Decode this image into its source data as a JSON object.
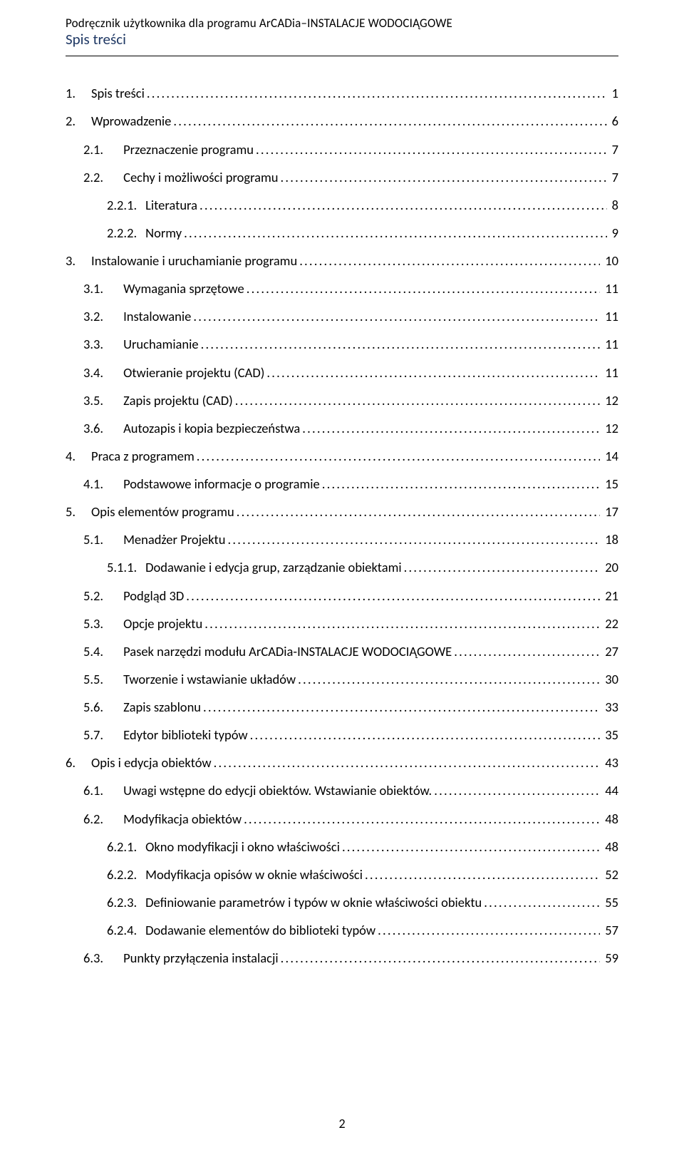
{
  "header": {
    "line1": "Podręcznik użytkownika dla programu ArCADia–INSTALACJE WODOCIĄGOWE",
    "line2": "Spis treści"
  },
  "footer": {
    "page_number": "2"
  },
  "toc": [
    {
      "level": 1,
      "num": "1.",
      "title": "Spis treści",
      "page": "1"
    },
    {
      "level": 1,
      "num": "2.",
      "title": "Wprowadzenie",
      "page": "6"
    },
    {
      "level": 2,
      "num": "2.1.",
      "title": "Przeznaczenie programu",
      "page": "7"
    },
    {
      "level": 2,
      "num": "2.2.",
      "title": "Cechy i możliwości programu",
      "page": "7"
    },
    {
      "level": 3,
      "num": "2.2.1.",
      "title": "Literatura",
      "page": "8"
    },
    {
      "level": 3,
      "num": "2.2.2.",
      "title": "Normy",
      "page": "9"
    },
    {
      "level": 1,
      "num": "3.",
      "title": "Instalowanie i uruchamianie programu",
      "page": "10"
    },
    {
      "level": 2,
      "num": "3.1.",
      "title": "Wymagania sprzętowe",
      "page": "11"
    },
    {
      "level": 2,
      "num": "3.2.",
      "title": "Instalowanie",
      "page": "11"
    },
    {
      "level": 2,
      "num": "3.3.",
      "title": "Uruchamianie",
      "page": "11"
    },
    {
      "level": 2,
      "num": "3.4.",
      "title": "Otwieranie projektu (CAD)",
      "page": "11"
    },
    {
      "level": 2,
      "num": "3.5.",
      "title": "Zapis projektu (CAD)",
      "page": "12"
    },
    {
      "level": 2,
      "num": "3.6.",
      "title": "Autozapis i kopia bezpieczeństwa",
      "page": "12"
    },
    {
      "level": 1,
      "num": "4.",
      "title": "Praca z programem",
      "page": "14"
    },
    {
      "level": 2,
      "num": "4.1.",
      "title": "Podstawowe informacje o programie",
      "page": "15"
    },
    {
      "level": 1,
      "num": "5.",
      "title": "Opis elementów programu",
      "page": "17"
    },
    {
      "level": 2,
      "num": "5.1.",
      "title": "Menadżer Projektu",
      "page": "18"
    },
    {
      "level": 3,
      "num": "5.1.1.",
      "title": "Dodawanie i edycja grup, zarządzanie obiektami",
      "page": "20"
    },
    {
      "level": 2,
      "num": "5.2.",
      "title": "Podgląd 3D",
      "page": "21"
    },
    {
      "level": 2,
      "num": "5.3.",
      "title": "Opcje projektu",
      "page": "22"
    },
    {
      "level": 2,
      "num": "5.4.",
      "title": "Pasek narzędzi modułu ArCADia-INSTALACJE WODOCIĄGOWE",
      "page": "27"
    },
    {
      "level": 2,
      "num": "5.5.",
      "title": "Tworzenie i wstawianie układów",
      "page": "30"
    },
    {
      "level": 2,
      "num": "5.6.",
      "title": "Zapis szablonu",
      "page": "33"
    },
    {
      "level": 2,
      "num": "5.7.",
      "title": "Edytor biblioteki typów",
      "page": "35"
    },
    {
      "level": 1,
      "num": "6.",
      "title": "Opis i edycja obiektów",
      "page": "43"
    },
    {
      "level": 2,
      "num": "6.1.",
      "title": "Uwagi wstępne do edycji obiektów. Wstawianie obiektów.",
      "page": "44"
    },
    {
      "level": 2,
      "num": "6.2.",
      "title": "Modyfikacja obiektów",
      "page": "48"
    },
    {
      "level": 3,
      "num": "6.2.1.",
      "title": "Okno modyfikacji i okno właściwości",
      "page": "48"
    },
    {
      "level": 3,
      "num": "6.2.2.",
      "title": "Modyfikacja opisów w oknie właściwości",
      "page": "52"
    },
    {
      "level": 3,
      "num": "6.2.3.",
      "title": "Definiowanie parametrów i typów w oknie właściwości obiektu",
      "page": "55"
    },
    {
      "level": 3,
      "num": "6.2.4.",
      "title": "Dodawanie elementów do biblioteki typów",
      "page": "57"
    },
    {
      "level": 2,
      "num": "6.3.",
      "title": "Punkty przyłączenia instalacji",
      "page": "59"
    }
  ]
}
